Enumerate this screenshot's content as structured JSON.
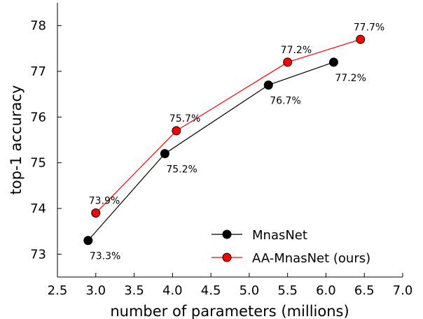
{
  "chart_data": {
    "type": "line",
    "xlabel": "number of parameters (millions)",
    "ylabel": "top-1 accuracy",
    "xlim": [
      2.5,
      7.0
    ],
    "ylim": [
      72.5,
      78.5
    ],
    "xticks": [
      "2.5",
      "3.0",
      "3.5",
      "4.0",
      "4.5",
      "5.0",
      "5.5",
      "6.0",
      "6.5",
      "7.0"
    ],
    "yticks": [
      "73",
      "74",
      "75",
      "76",
      "77",
      "78"
    ],
    "grid": false,
    "legend_position": "bottom-right",
    "series": [
      {
        "name": "MnasNet",
        "color": "#000000",
        "points": [
          {
            "x": 2.9,
            "y": 73.3,
            "label": "73.3%"
          },
          {
            "x": 3.9,
            "y": 75.2,
            "label": "75.2%"
          },
          {
            "x": 5.25,
            "y": 76.7,
            "label": "76.7%"
          },
          {
            "x": 6.1,
            "y": 77.2,
            "label": "77.2%"
          }
        ]
      },
      {
        "name": "AA-MnasNet (ours)",
        "color": "#ff0000",
        "points": [
          {
            "x": 3.0,
            "y": 73.9,
            "label": "73.9%"
          },
          {
            "x": 4.05,
            "y": 75.7,
            "label": "75.7%"
          },
          {
            "x": 5.5,
            "y": 77.2,
            "label": "77.2%"
          },
          {
            "x": 6.45,
            "y": 77.7,
            "label": "77.7%"
          }
        ]
      }
    ]
  }
}
